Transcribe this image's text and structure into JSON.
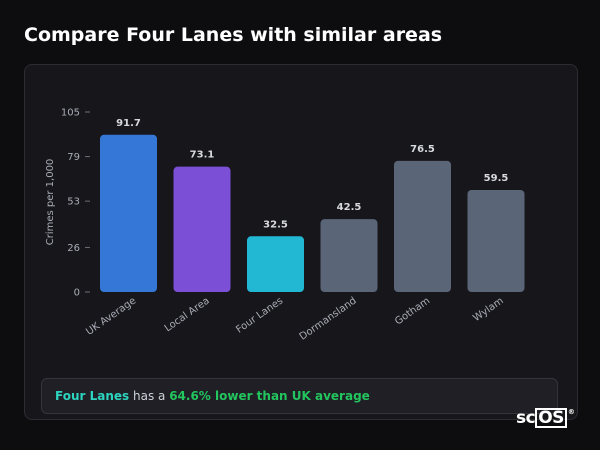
{
  "page_title": "Compare Four Lanes with similar areas",
  "chart_data": {
    "type": "bar",
    "ylabel": "Crimes per 1,000",
    "xlabel": "",
    "ylim": [
      0,
      105
    ],
    "yticks": [
      0,
      26,
      53,
      79,
      105
    ],
    "categories": [
      "UK Average",
      "Local Area",
      "Four Lanes",
      "Dormansland",
      "Gotham",
      "Wylam"
    ],
    "values": [
      91.7,
      73.1,
      32.5,
      42.5,
      76.5,
      59.5
    ],
    "value_labels": [
      "91.7",
      "73.1",
      "32.5",
      "42.5",
      "76.5",
      "59.5"
    ],
    "colors": [
      "#3577d6",
      "#7b4fd6",
      "#22b8d3",
      "#5b6578",
      "#5b6578",
      "#5b6578"
    ],
    "grid": false,
    "legend": "none"
  },
  "summary": {
    "place": "Four Lanes",
    "middle": " has a ",
    "difference": "64.6% lower than UK average"
  },
  "logo": {
    "text": "scOS",
    "mark": "®"
  }
}
